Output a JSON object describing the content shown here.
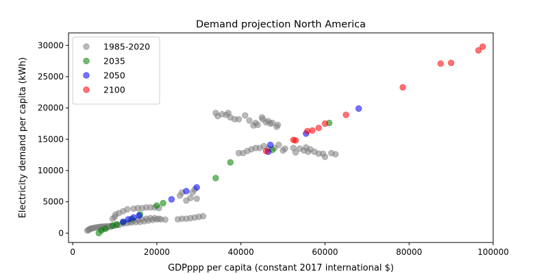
{
  "chart_data": {
    "type": "scatter",
    "title": "Demand projection North America",
    "xlabel": "GDPppp per capita (constant 2017 international $)",
    "ylabel": "Electricity demand per capita (kWh)",
    "xlim": [
      -1000,
      100000
    ],
    "ylim": [
      -1500,
      32000
    ],
    "xticks": [
      0,
      20000,
      40000,
      60000,
      80000,
      100000
    ],
    "yticks": [
      0,
      5000,
      10000,
      15000,
      20000,
      25000,
      30000
    ],
    "legend_position": "top-left",
    "marker_alpha": 0.55,
    "series": [
      {
        "name": "1985-2020",
        "color": "#808080",
        "points": [
          [
            3500,
            400
          ],
          [
            3800,
            500
          ],
          [
            4000,
            600
          ],
          [
            4200,
            700
          ],
          [
            4500,
            750
          ],
          [
            4800,
            800
          ],
          [
            5200,
            850
          ],
          [
            5600,
            900
          ],
          [
            6000,
            950
          ],
          [
            6400,
            1000
          ],
          [
            6800,
            1000
          ],
          [
            7200,
            1050
          ],
          [
            7600,
            1050
          ],
          [
            8000,
            1100
          ],
          [
            8500,
            1100
          ],
          [
            9000,
            1150
          ],
          [
            9500,
            1150
          ],
          [
            10000,
            1200
          ],
          [
            7000,
            700
          ],
          [
            7500,
            750
          ],
          [
            8200,
            900
          ],
          [
            9000,
            1000
          ],
          [
            10500,
            1300
          ],
          [
            11000,
            1300
          ],
          [
            9500,
            2300
          ],
          [
            10000,
            2600
          ],
          [
            10200,
            3000
          ],
          [
            11000,
            3200
          ],
          [
            12000,
            3500
          ],
          [
            13000,
            3800
          ],
          [
            14500,
            3900
          ],
          [
            15500,
            4000
          ],
          [
            16500,
            4000
          ],
          [
            17500,
            4100
          ],
          [
            18500,
            4100
          ],
          [
            19500,
            4100
          ],
          [
            20500,
            4000
          ],
          [
            12000,
            1500
          ],
          [
            13000,
            1600
          ],
          [
            14000,
            1700
          ],
          [
            15000,
            1750
          ],
          [
            16000,
            1800
          ],
          [
            17000,
            1900
          ],
          [
            18000,
            2000
          ],
          [
            19000,
            2100
          ],
          [
            20000,
            2200
          ],
          [
            21000,
            2200
          ],
          [
            22000,
            2150
          ],
          [
            13500,
            1800
          ],
          [
            14500,
            2000
          ],
          [
            15500,
            2100
          ],
          [
            16500,
            2200
          ],
          [
            17500,
            2300
          ],
          [
            18500,
            2400
          ],
          [
            19500,
            2400
          ],
          [
            20500,
            2300
          ],
          [
            25000,
            2200
          ],
          [
            26000,
            2300
          ],
          [
            27000,
            2300
          ],
          [
            28000,
            2400
          ],
          [
            29000,
            2500
          ],
          [
            30000,
            2600
          ],
          [
            31000,
            2700
          ],
          [
            25500,
            6000
          ],
          [
            26000,
            6500
          ],
          [
            27000,
            5200
          ],
          [
            28000,
            5600
          ],
          [
            28500,
            6500
          ],
          [
            29000,
            7000
          ],
          [
            29500,
            5500
          ],
          [
            34000,
            19200
          ],
          [
            34500,
            18700
          ],
          [
            35500,
            19000
          ],
          [
            36500,
            18900
          ],
          [
            37000,
            19200
          ],
          [
            37500,
            18500
          ],
          [
            38500,
            18200
          ],
          [
            39500,
            18200
          ],
          [
            41000,
            18800
          ],
          [
            42000,
            18000
          ],
          [
            43000,
            17200
          ],
          [
            43500,
            17600
          ],
          [
            44000,
            17300
          ],
          [
            45000,
            18500
          ],
          [
            45200,
            18200
          ],
          [
            46000,
            17700
          ],
          [
            46500,
            17900
          ],
          [
            47000,
            17500
          ],
          [
            47500,
            17600
          ],
          [
            48500,
            17000
          ],
          [
            48800,
            17300
          ],
          [
            39500,
            12800
          ],
          [
            40500,
            12800
          ],
          [
            41500,
            13100
          ],
          [
            42500,
            13400
          ],
          [
            43500,
            13600
          ],
          [
            44500,
            13600
          ],
          [
            45500,
            13900
          ],
          [
            46500,
            13500
          ],
          [
            48000,
            13600
          ],
          [
            49000,
            14100
          ],
          [
            50000,
            13200
          ],
          [
            50500,
            13500
          ],
          [
            52500,
            13600
          ],
          [
            53000,
            12900
          ],
          [
            54000,
            13500
          ],
          [
            55000,
            13200
          ],
          [
            55500,
            13700
          ],
          [
            56000,
            13000
          ],
          [
            56500,
            13400
          ],
          [
            57500,
            13000
          ],
          [
            58500,
            12700
          ],
          [
            59500,
            12700
          ],
          [
            60000,
            12200
          ],
          [
            61500,
            12800
          ],
          [
            62500,
            12600
          ]
        ]
      },
      {
        "name": "2035",
        "color": "#008000",
        "points": [
          [
            6200,
            0
          ],
          [
            6800,
            400
          ],
          [
            7800,
            700
          ],
          [
            9500,
            1200
          ],
          [
            10500,
            1400
          ],
          [
            12000,
            1800
          ],
          [
            14000,
            2300
          ],
          [
            16000,
            3000
          ],
          [
            20000,
            4400
          ],
          [
            21500,
            4800
          ],
          [
            34000,
            8800
          ],
          [
            37500,
            11300
          ],
          [
            47500,
            13300
          ],
          [
            61000,
            17600
          ]
        ]
      },
      {
        "name": "2050",
        "color": "#0000ff",
        "points": [
          [
            12000,
            1800
          ],
          [
            13200,
            2200
          ],
          [
            14500,
            2500
          ],
          [
            15800,
            2800
          ],
          [
            23500,
            5400
          ],
          [
            27000,
            6700
          ],
          [
            29500,
            7300
          ],
          [
            46500,
            13000
          ],
          [
            47000,
            14100
          ],
          [
            55500,
            15900
          ],
          [
            68000,
            19900
          ]
        ]
      },
      {
        "name": "2100",
        "color": "#ff0000",
        "points": [
          [
            46000,
            13100
          ],
          [
            52500,
            14900
          ],
          [
            53000,
            14800
          ],
          [
            55800,
            16300
          ],
          [
            57000,
            16400
          ],
          [
            58500,
            16800
          ],
          [
            60000,
            17500
          ],
          [
            65000,
            18900
          ],
          [
            78500,
            23300
          ],
          [
            87500,
            27100
          ],
          [
            90000,
            27200
          ],
          [
            96500,
            29200
          ],
          [
            97500,
            29800
          ]
        ]
      }
    ]
  }
}
